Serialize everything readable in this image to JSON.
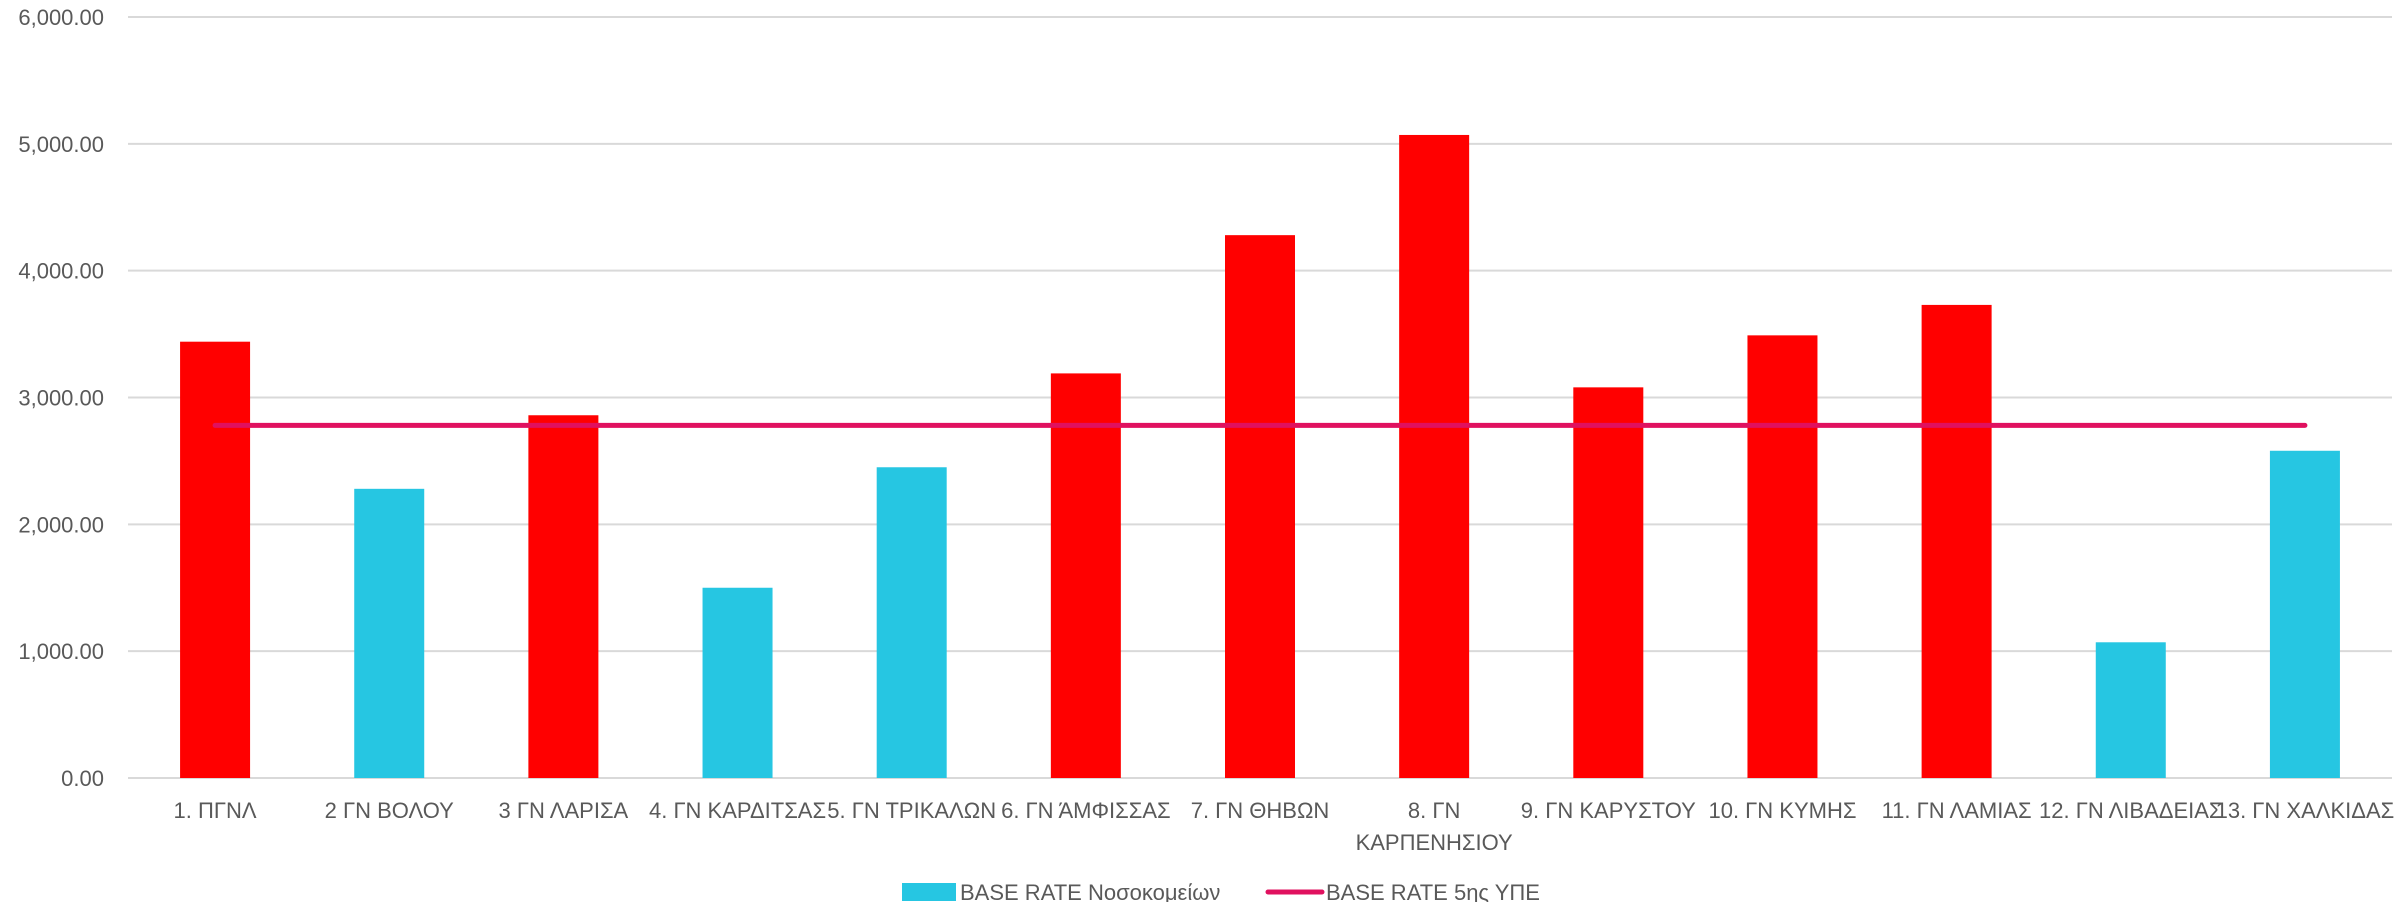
{
  "chart_data": {
    "type": "bar",
    "title": "",
    "xlabel": "",
    "ylabel": "",
    "ylim": [
      0,
      6000
    ],
    "yticks": [
      "0.00",
      "1,000.00",
      "2,000.00",
      "3,000.00",
      "4,000.00",
      "5,000.00",
      "6,000.00"
    ],
    "grid": true,
    "legend_position": "bottom",
    "categories": [
      [
        "1. ΠΓΝΛ"
      ],
      [
        "2 ΓΝ ΒΟΛΟΥ"
      ],
      [
        "3 ΓΝ ΛΑΡΙΣΑ"
      ],
      [
        "4. ΓΝ ΚΑΡΔΙΤΣΑΣ"
      ],
      [
        "5. ΓΝ ΤΡΙΚΑΛΩΝ"
      ],
      [
        "6. ΓΝ ΆΜΦΙΣΣΑΣ"
      ],
      [
        "7. ΓΝ ΘΗΒΩΝ"
      ],
      [
        "8. ΓΝ",
        "ΚΑΡΠΕΝΗΣΙΟΥ"
      ],
      [
        "9. ΓΝ ΚΑΡΥΣΤΟΥ"
      ],
      [
        "10. ΓΝ ΚΥΜΗΣ"
      ],
      [
        "11. ΓΝ ΛΑΜΙΑΣ"
      ],
      [
        "12. ΓΝ ΛΙΒΑΔΕΙΑΣ"
      ],
      [
        "13. ΓΝ ΧΑΛΚΙΔΑΣ"
      ]
    ],
    "series": [
      {
        "name": "BASE RATE Νοσοκομείων",
        "kind": "bar",
        "color": "#26C6E2",
        "highlight_color": "#FF0000",
        "values": [
          3440,
          2280,
          2860,
          1500,
          2450,
          3190,
          4280,
          5070,
          3080,
          3490,
          3730,
          1070,
          2580
        ]
      },
      {
        "name": "BASE RATE 5ης ΥΠΕ",
        "kind": "line",
        "color": "#E0115F",
        "values": [
          2780,
          2780,
          2780,
          2780,
          2780,
          2780,
          2780,
          2780,
          2780,
          2780,
          2780,
          2780,
          2780
        ]
      }
    ]
  }
}
